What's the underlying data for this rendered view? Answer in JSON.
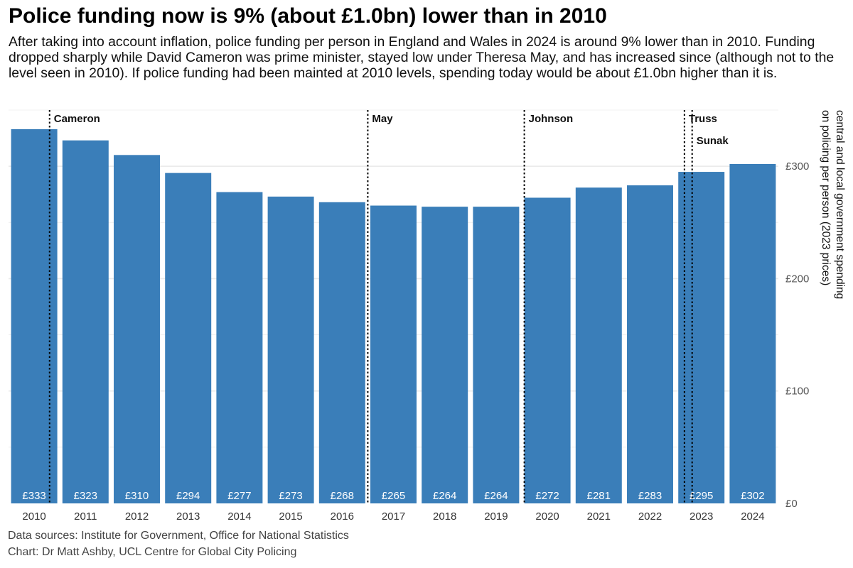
{
  "title": "Police funding now is 9% (about £1.0bn) lower than in 2010",
  "subtitle": "After taking into account inflation, police funding per person in England and Wales in 2024 is around 9% lower than in 2010. Funding dropped sharply while David Cameron was prime minister, stayed low under Theresa May, and has increased since (although not to the level seen in 2010). If police funding had been mainted at 2010 levels, spending today would be about £1.0bn higher than it is.",
  "caption": {
    "sources": "Data sources: Institute for Government, Office for National Statistics",
    "credit": "Chart: Dr Matt Ashby, UCL Centre for Global City Policing"
  },
  "colors": {
    "bar": "#3A7EB9",
    "grid": "#EBEBEB",
    "marker": "#000000"
  },
  "chart_data": {
    "type": "bar",
    "categories": [
      "2010",
      "2011",
      "2012",
      "2013",
      "2014",
      "2015",
      "2016",
      "2017",
      "2018",
      "2019",
      "2020",
      "2021",
      "2022",
      "2023",
      "2024"
    ],
    "values": [
      333,
      323,
      310,
      294,
      277,
      273,
      268,
      265,
      264,
      264,
      272,
      281,
      283,
      295,
      302
    ],
    "data_labels": [
      "£333",
      "£323",
      "£310",
      "£294",
      "£277",
      "£273",
      "£268",
      "£265",
      "£264",
      "£264",
      "£272",
      "£281",
      "£283",
      "£295",
      "£302"
    ],
    "ylabel_lines": [
      "central and local government spending",
      "on policing per person (2023 prices)"
    ],
    "ylim": [
      0,
      350
    ],
    "y_ticks": [
      0,
      100,
      200,
      300
    ],
    "y_tick_labels": [
      "£0",
      "£100",
      "£200",
      "£300"
    ],
    "y_axis_side": "right",
    "grid": true,
    "markers": [
      {
        "label": "Cameron",
        "x": 2010.3,
        "row": 0
      },
      {
        "label": "May",
        "x": 2016.5,
        "row": 0
      },
      {
        "label": "Johnson",
        "x": 2019.55,
        "row": 0
      },
      {
        "label": "Truss",
        "x": 2022.67,
        "row": 0
      },
      {
        "label": "Sunak",
        "x": 2022.82,
        "row": 1
      }
    ]
  }
}
